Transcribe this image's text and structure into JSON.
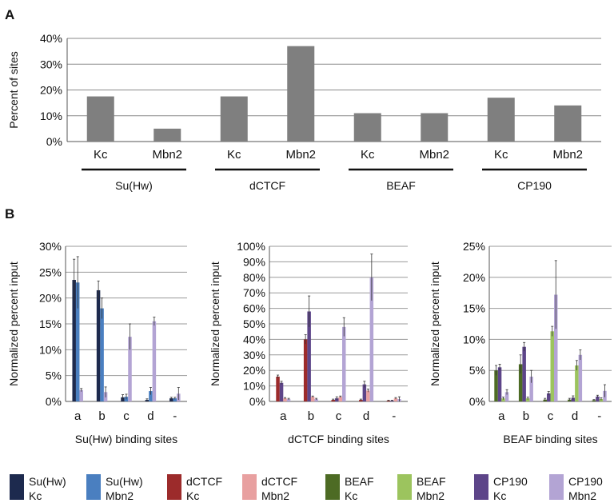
{
  "panels": {
    "a_label": "A",
    "b_label": "B"
  },
  "chart_data": [
    {
      "type": "bar",
      "panel": "A",
      "ylabel": "Percent of sites",
      "ylim": [
        0,
        40
      ],
      "yticks": [
        "0%",
        "10%",
        "20%",
        "30%",
        "40%"
      ],
      "grid": true,
      "bar_color": "#7f7f7f",
      "categories": [
        "Kc",
        "Mbn2",
        "Kc",
        "Mbn2",
        "Kc",
        "Mbn2",
        "Kc",
        "Mbn2"
      ],
      "groups": [
        "Su(Hw)",
        "dCTCF",
        "BEAF",
        "CP190"
      ],
      "values": [
        17.5,
        5,
        17.5,
        37,
        11,
        11,
        17,
        14
      ]
    },
    {
      "type": "bar",
      "panel": "B",
      "xlabel": "Su(Hw) binding sites",
      "ylabel": "Normalized percent input",
      "ylim": [
        0,
        30
      ],
      "yticks": [
        "0%",
        "5%",
        "10%",
        "15%",
        "20%",
        "25%",
        "30%"
      ],
      "categories": [
        "a",
        "b",
        "c",
        "d",
        "-"
      ],
      "series": [
        {
          "name": "Su(Hw) Kc",
          "values": [
            23.5,
            21.5,
            0.8,
            0.3,
            0.6
          ],
          "errors": [
            4,
            1.8,
            0.5,
            0.2,
            0.2
          ]
        },
        {
          "name": "Su(Hw) Mbn2",
          "values": [
            23,
            18,
            0.9,
            2,
            0.6
          ],
          "errors": [
            5,
            2,
            0.5,
            0.7,
            0.2
          ]
        },
        {
          "name": "CP190 Mbn2",
          "values": [
            2.2,
            1.8,
            12.5,
            15.5,
            1.5
          ],
          "errors": [
            0.3,
            1,
            2.5,
            0.8,
            1.2
          ]
        }
      ]
    },
    {
      "type": "bar",
      "panel": "B",
      "xlabel": "dCTCF binding sites",
      "ylabel": "Normalized percent input",
      "ylim": [
        0,
        100
      ],
      "yticks": [
        "0%",
        "10%",
        "20%",
        "30%",
        "40%",
        "50%",
        "60%",
        "70%",
        "80%",
        "90%",
        "100%"
      ],
      "categories": [
        "a",
        "b",
        "c",
        "d",
        "-"
      ],
      "series": [
        {
          "name": "dCTCF Kc",
          "values": [
            16,
            40,
            1,
            1,
            0.5
          ],
          "errors": [
            1,
            3,
            0.5,
            0.5,
            0.3
          ]
        },
        {
          "name": "CP190 Kc",
          "values": [
            12,
            58,
            2,
            11,
            0.5
          ],
          "errors": [
            1,
            10,
            1,
            2,
            0.3
          ]
        },
        {
          "name": "dCTCF Mbn2",
          "values": [
            2,
            3,
            3,
            7,
            2
          ],
          "errors": [
            0.5,
            0.5,
            0.5,
            1,
            0.5
          ]
        },
        {
          "name": "CP190 Mbn2",
          "values": [
            1.5,
            1.5,
            48,
            80,
            1.5
          ],
          "errors": [
            0.5,
            0.5,
            6,
            15,
            1.5
          ]
        }
      ]
    },
    {
      "type": "bar",
      "panel": "B",
      "xlabel": "BEAF binding sites",
      "ylabel": "Normalized percent input",
      "ylim": [
        0,
        25
      ],
      "yticks": [
        "0%",
        "5%",
        "10%",
        "15%",
        "20%",
        "25%"
      ],
      "categories": [
        "a",
        "b",
        "c",
        "d",
        "-"
      ],
      "series": [
        {
          "name": "BEAF Kc",
          "values": [
            5,
            6,
            0.3,
            0.3,
            0.2
          ],
          "errors": [
            0.8,
            1.5,
            0.2,
            0.2,
            0.1
          ]
        },
        {
          "name": "CP190 Kc",
          "values": [
            5.5,
            8.8,
            1.3,
            0.6,
            0.8
          ],
          "errors": [
            0.5,
            0.7,
            0.3,
            0.3,
            0.2
          ]
        },
        {
          "name": "BEAF Mbn2",
          "values": [
            0.5,
            0.5,
            11.3,
            5.8,
            0.4
          ],
          "errors": [
            0.2,
            0.2,
            0.8,
            0.8,
            0.2
          ]
        },
        {
          "name": "CP190 Mbn2",
          "values": [
            1.5,
            4,
            17.2,
            7.5,
            1.7
          ],
          "errors": [
            0.4,
            1,
            5.5,
            0.8,
            1
          ]
        }
      ]
    }
  ],
  "legend": [
    {
      "line1": "Su(Hw)",
      "line2": "Kc",
      "color": "#1d2a4e"
    },
    {
      "line1": "Su(Hw)",
      "line2": "Mbn2",
      "color": "#4a7fc0"
    },
    {
      "line1": "dCTCF",
      "line2": "Kc",
      "color": "#9c2b2b"
    },
    {
      "line1": "dCTCF",
      "line2": "Mbn2",
      "color": "#e8a0a0"
    },
    {
      "line1": "BEAF",
      "line2": "Kc",
      "color": "#4d6b24"
    },
    {
      "line1": "BEAF",
      "line2": "Mbn2",
      "color": "#9cc45e"
    },
    {
      "line1": "CP190",
      "line2": "Kc",
      "color": "#5d4589"
    },
    {
      "line1": "CP190",
      "line2": "Mbn2",
      "color": "#b3a4d4"
    }
  ]
}
